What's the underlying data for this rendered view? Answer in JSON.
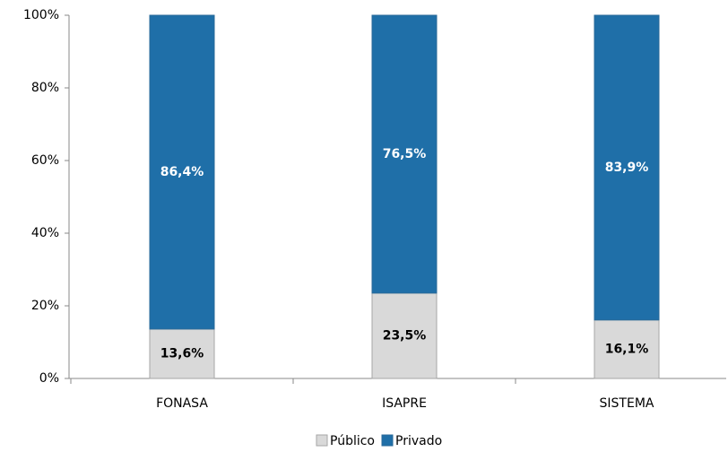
{
  "chart_data": {
    "type": "stacked_bar",
    "categories": [
      "FONASA",
      "ISAPRE",
      "SISTEMA"
    ],
    "series": [
      {
        "name": "Público",
        "color": "#d9d9d9",
        "values": [
          13.6,
          23.5,
          16.1
        ],
        "value_labels": [
          "13,6%",
          "23,5%",
          "16,1%"
        ]
      },
      {
        "name": "Privado",
        "color": "#1f6fa8",
        "values": [
          86.4,
          76.5,
          83.9
        ],
        "value_labels": [
          "86,4%",
          "76,5%",
          "83,9%"
        ]
      }
    ],
    "ylim": [
      0,
      100
    ],
    "yticks": [
      {
        "value": 0,
        "label": "0%"
      },
      {
        "value": 20,
        "label": "20%"
      },
      {
        "value": 40,
        "label": "40%"
      },
      {
        "value": 60,
        "label": "60%"
      },
      {
        "value": 80,
        "label": "80%"
      },
      {
        "value": 100,
        "label": "100%"
      }
    ],
    "legend": "bottom"
  }
}
